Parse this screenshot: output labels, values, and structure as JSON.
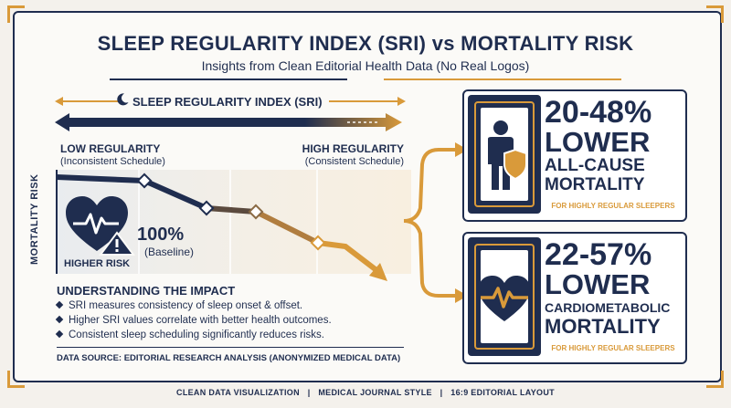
{
  "title": "SLEEP REGULARITY INDEX (SRI) vs MORTALITY RISK",
  "subtitle": "Insights from Clean Editorial Health Data (No Real Logos)",
  "axis": {
    "label": "SLEEP REGULARITY INDEX (SRI)",
    "low_title": "LOW REGULARITY",
    "low_sub": "(Inconsistent Schedule)",
    "high_title": "HIGH REGULARITY",
    "high_sub": "(Consistent Schedule)"
  },
  "chart": {
    "y_label": "MORTALITY RISK",
    "higher_risk": "HIGHER RISK",
    "baseline_value": "100%",
    "baseline_label": "(Baseline)"
  },
  "impact": {
    "title": "UNDERSTANDING THE IMPACT",
    "bullets": [
      "SRI measures consistency of sleep onset & offset.",
      "Higher SRI values correlate with better health outcomes.",
      "Consistent sleep scheduling significantly reduces risks."
    ]
  },
  "source": "DATA SOURCE: EDITORIAL RESEARCH ANALYSIS (ANONYMIZED MEDICAL DATA)",
  "cards": [
    {
      "stat": "20-48%",
      "line1": "LOWER",
      "line2": "ALL-CAUSE",
      "line3": "MORTALITY",
      "note": "FOR HIGHLY REGULAR SLEEPERS",
      "icon": "person-shield-icon"
    },
    {
      "stat": "22-57%",
      "line1": "LOWER",
      "line2": "CARDIOMETABOLIC",
      "line3": "MORTALITY",
      "note": "FOR HIGHLY REGULAR SLEEPERS",
      "icon": "heart-pulse-icon"
    }
  ],
  "footer": {
    "items": [
      "CLEAN DATA VISUALIZATION",
      "MEDICAL JOURNAL STYLE",
      "16:9 EDITORIAL LAYOUT"
    ],
    "separator": "|"
  },
  "colors": {
    "navy": "#1f2d4f",
    "gold": "#d99a3a",
    "cream": "#fbfaf7"
  }
}
